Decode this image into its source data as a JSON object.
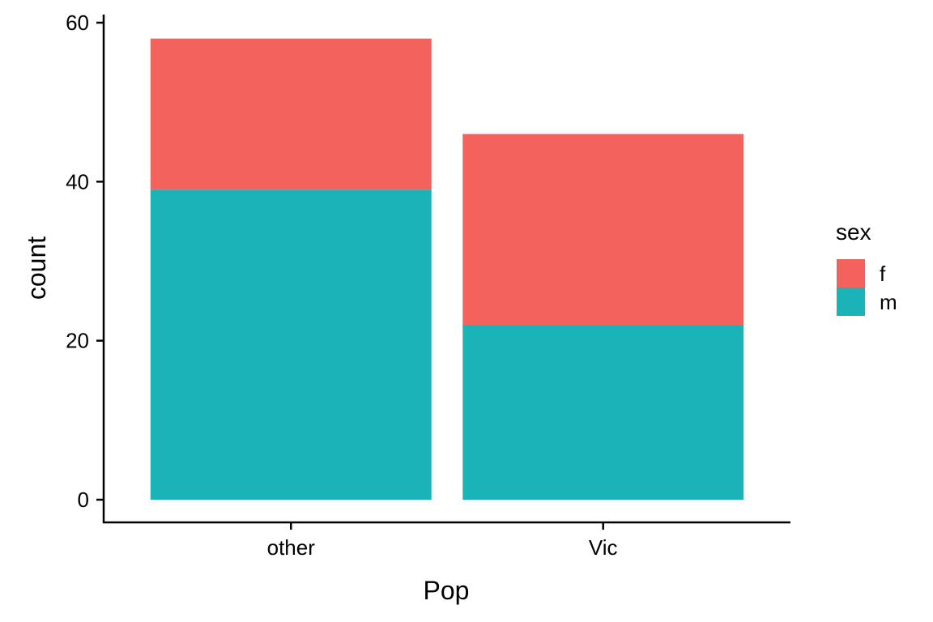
{
  "chart_data": {
    "type": "bar",
    "stacked": true,
    "title": "",
    "xlabel": "Pop",
    "ylabel": "count",
    "categories": [
      "other",
      "Vic"
    ],
    "series": [
      {
        "name": "f",
        "color": "#F3625D",
        "values": [
          19,
          24
        ]
      },
      {
        "name": "m",
        "color": "#19B3B8",
        "values": [
          39,
          22
        ]
      }
    ],
    "ylim": [
      0,
      60
    ],
    "yticks": [
      0,
      20,
      40,
      60
    ],
    "y_tick_labels": [
      "0",
      "20",
      "40",
      "60"
    ],
    "grid": false,
    "legend": {
      "title": "sex",
      "position": "right"
    }
  }
}
